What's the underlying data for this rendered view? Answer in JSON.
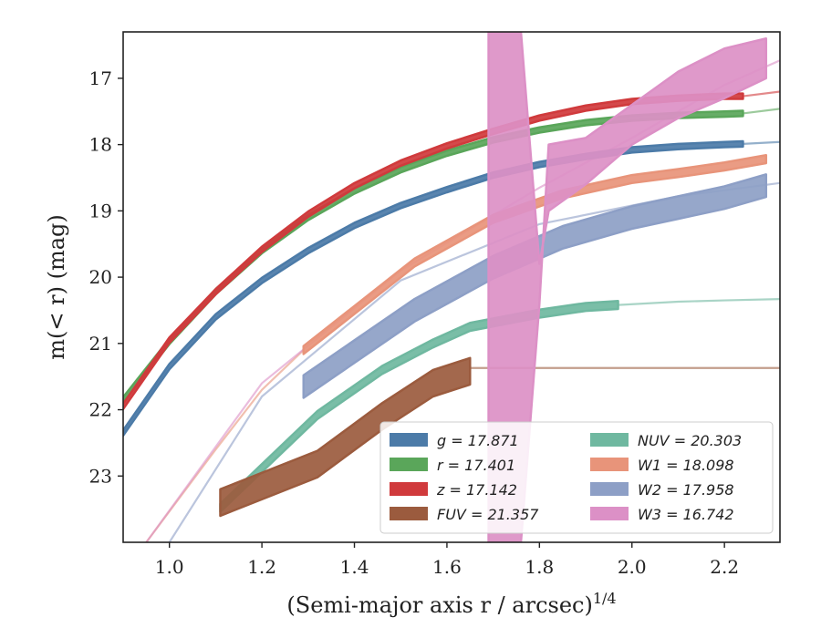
{
  "chart_data": {
    "type": "line",
    "xlabel": "(Semi-major axis r / arcsec)",
    "xlabel_exponent": "1/4",
    "ylabel": "m(< r) (mag)",
    "xlim": [
      0.9,
      2.32
    ],
    "ylim": [
      24.0,
      16.3
    ],
    "y_inverted": true,
    "xticks": [
      1.0,
      1.2,
      1.4,
      1.6,
      1.8,
      2.0,
      2.2
    ],
    "yticks": [
      17,
      18,
      19,
      20,
      21,
      22,
      23
    ],
    "xtick_labels": [
      "1.0",
      "1.2",
      "1.4",
      "1.6",
      "1.8",
      "2.0",
      "2.2"
    ],
    "ytick_labels": [
      "17",
      "18",
      "19",
      "20",
      "21",
      "22",
      "23"
    ],
    "legend_position": "lower-right",
    "legend_columns": 2,
    "series": [
      {
        "name": "g = 17.871",
        "color": "#4c7ba8",
        "x": [
          0.9,
          1.0,
          1.1,
          1.2,
          1.3,
          1.4,
          1.5,
          1.6,
          1.7,
          1.8,
          1.9,
          2.0,
          2.1,
          2.2,
          2.24
        ],
        "y": [
          22.35,
          21.35,
          20.6,
          20.05,
          19.6,
          19.22,
          18.92,
          18.68,
          18.46,
          18.3,
          18.18,
          18.08,
          18.03,
          18.0,
          17.99
        ],
        "halfwidth": 0.04,
        "model": {
          "x": [
            2.24,
            2.32
          ],
          "y": [
            17.99,
            17.96
          ]
        }
      },
      {
        "name": "r = 17.401",
        "color": "#5aa65a",
        "x": [
          0.9,
          1.0,
          1.1,
          1.2,
          1.3,
          1.4,
          1.5,
          1.6,
          1.7,
          1.8,
          1.9,
          2.0,
          2.1,
          2.2,
          2.24
        ],
        "y": [
          21.85,
          20.97,
          20.22,
          19.6,
          19.1,
          18.7,
          18.38,
          18.13,
          17.93,
          17.78,
          17.67,
          17.6,
          17.56,
          17.54,
          17.53
        ],
        "halfwidth": 0.04,
        "model": {
          "x": [
            2.24,
            2.32
          ],
          "y": [
            17.53,
            17.46
          ]
        }
      },
      {
        "name": "z = 17.142",
        "color": "#d03a3c",
        "x": [
          0.9,
          1.0,
          1.1,
          1.2,
          1.3,
          1.4,
          1.5,
          1.6,
          1.7,
          1.8,
          1.9,
          2.0,
          2.1,
          2.2,
          2.24
        ],
        "y": [
          21.95,
          20.95,
          20.22,
          19.58,
          19.05,
          18.62,
          18.28,
          18.02,
          17.8,
          17.6,
          17.45,
          17.35,
          17.3,
          17.27,
          17.27
        ],
        "halfwidth": 0.04,
        "model": {
          "x": [
            2.24,
            2.32
          ],
          "y": [
            17.27,
            17.2
          ]
        }
      },
      {
        "name": "FUV = 21.357",
        "color": "#9b5b3e",
        "x": [
          1.11,
          1.32,
          1.46,
          1.57,
          1.65
        ],
        "y": [
          23.4,
          22.82,
          22.1,
          21.6,
          21.42
        ],
        "halfwidth": 0.2,
        "model": {
          "x": [
            1.65,
            2.32
          ],
          "y": [
            21.37,
            21.37
          ]
        }
      },
      {
        "name": "NUV = 20.303",
        "color": "#6fb8a0",
        "x": [
          1.11,
          1.32,
          1.46,
          1.57,
          1.65,
          1.8,
          1.9,
          1.97
        ],
        "y": [
          23.48,
          22.08,
          21.4,
          21.0,
          20.75,
          20.55,
          20.45,
          20.42
        ],
        "halfwidth": 0.06,
        "model": {
          "x": [
            1.97,
            2.1,
            2.2,
            2.32
          ],
          "y": [
            20.42,
            20.37,
            20.35,
            20.33
          ]
        }
      },
      {
        "name": "W1 = 18.098",
        "color": "#e8947a",
        "x": [
          1.29,
          1.53,
          1.7,
          1.85,
          2.0,
          2.1,
          2.2,
          2.29
        ],
        "y": [
          21.1,
          19.78,
          19.12,
          18.75,
          18.52,
          18.43,
          18.33,
          18.22
        ],
        "halfwidth": 0.06,
        "model": {
          "x": [
            0.95,
            1.1,
            1.2,
            1.29
          ],
          "y": [
            24.0,
            22.6,
            21.7,
            21.1
          ]
        }
      },
      {
        "name": "W2 = 17.958",
        "color": "#8d9fc6",
        "x": [
          1.29,
          1.53,
          1.7,
          1.85,
          2.0,
          2.1,
          2.2,
          2.29
        ],
        "y": [
          21.65,
          20.5,
          19.85,
          19.4,
          19.1,
          18.95,
          18.8,
          18.62
        ],
        "halfwidth": 0.17,
        "model": {
          "x": [
            1.0,
            1.2,
            1.5,
            1.8,
            2.1,
            2.32
          ],
          "y": [
            24.0,
            21.8,
            20.05,
            19.2,
            18.78,
            18.58
          ]
        }
      },
      {
        "name": "W3 = 16.742",
        "color": "#dc90c6",
        "x": [
          1.69,
          1.76,
          1.8,
          1.82,
          1.9,
          2.0,
          2.1,
          2.2,
          2.29
        ],
        "y_lower": [
          16.3,
          16.3,
          19.8,
          19.0,
          18.6,
          18.0,
          17.6,
          17.3,
          17.0
        ],
        "y_upper": [
          24.0,
          24.0,
          20.4,
          18.0,
          17.9,
          17.4,
          16.9,
          16.55,
          16.4
        ],
        "model": {
          "x": [
            0.95,
            1.2,
            1.5,
            1.8,
            2.0,
            2.2,
            2.32
          ],
          "y": [
            24.0,
            21.6,
            19.9,
            18.65,
            17.9,
            17.1,
            16.73
          ]
        }
      }
    ]
  }
}
